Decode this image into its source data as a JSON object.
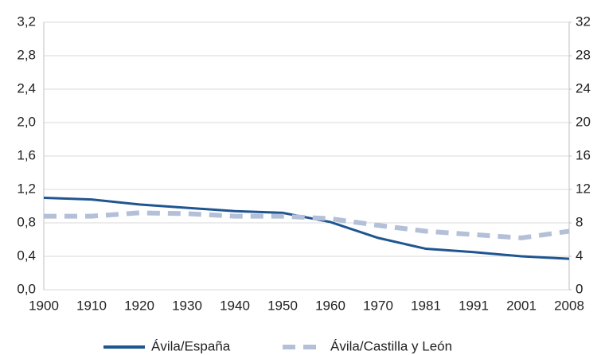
{
  "chart_data": {
    "type": "line",
    "categories": [
      "1900",
      "1910",
      "1920",
      "1930",
      "1940",
      "1950",
      "1960",
      "1970",
      "1981",
      "1991",
      "2001",
      "2008"
    ],
    "series": [
      {
        "name": "Ávila/España",
        "color": "#1f5591",
        "style": "solid",
        "axis": "y",
        "values": [
          1.1,
          1.08,
          1.02,
          0.98,
          0.94,
          0.92,
          0.81,
          0.62,
          0.49,
          0.45,
          0.4,
          0.37
        ]
      },
      {
        "name": "Ávila/Castilla y León",
        "color": "#b4c0d8",
        "style": "dashed",
        "axis": "y2",
        "values": [
          8.8,
          8.8,
          9.2,
          9.1,
          8.8,
          8.8,
          8.5,
          7.7,
          7.0,
          6.6,
          6.2,
          7.0
        ]
      }
    ],
    "ylim": [
      0,
      3.2
    ],
    "yticks": [
      {
        "value": 0,
        "label": "0,0"
      },
      {
        "value": 0.4,
        "label": "0,4"
      },
      {
        "value": 0.8,
        "label": "0,8"
      },
      {
        "value": 1.2,
        "label": "1,2"
      },
      {
        "value": 1.6,
        "label": "1,6"
      },
      {
        "value": 2.0,
        "label": "2,0"
      },
      {
        "value": 2.4,
        "label": "2,4"
      },
      {
        "value": 2.8,
        "label": "2,8"
      },
      {
        "value": 3.2,
        "label": "3,2"
      }
    ],
    "y2lim": [
      0,
      32
    ],
    "y2ticks": [
      0,
      4,
      8,
      12,
      16,
      20,
      24,
      28,
      32
    ],
    "grid": true,
    "legend": "bottom"
  }
}
